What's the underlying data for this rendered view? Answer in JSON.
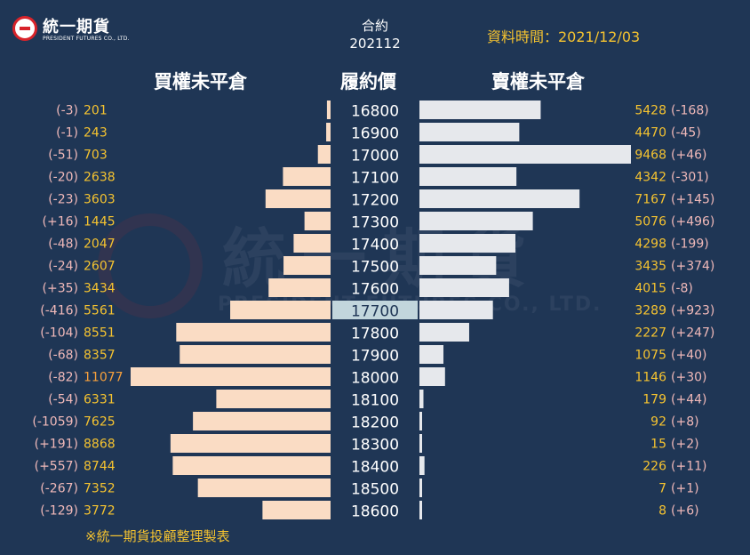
{
  "header": {
    "logo_name": "統一期貨",
    "logo_sub": "PRESIDENT FUTURES CO., LTD.",
    "contract_label": "合約",
    "contract_code": "202112",
    "data_time": "資料時間：2021/12/03"
  },
  "watermark": {
    "main": "統一期貨",
    "sub": "PRESIDENT FUTURES CO., LTD."
  },
  "footer_note": "※統一期貨投顧整理製表",
  "colors": {
    "background": "#1f3655",
    "call_bar": "#fadcc4",
    "put_bar": "#e6e8ec",
    "highlight_strike": "#c2d6dc",
    "value_text": "#f5c330",
    "change_text": "#f0b9b9",
    "orange_value": "#f7a03c"
  },
  "chart_data": {
    "type": "bar",
    "titles": {
      "call": "買權未平倉",
      "strike": "履約價",
      "put": "賣權未平倉"
    },
    "highlight_strike": "17700",
    "strikes": [
      "16800",
      "16900",
      "17000",
      "17100",
      "17200",
      "17300",
      "17400",
      "17500",
      "17600",
      "17700",
      "17800",
      "17900",
      "18000",
      "18100",
      "18200",
      "18300",
      "18400",
      "18500",
      "18600"
    ],
    "call_oi": [
      201,
      243,
      703,
      2638,
      3603,
      1445,
      2047,
      2607,
      3434,
      5561,
      8551,
      8357,
      11077,
      6331,
      7625,
      8868,
      8744,
      7352,
      3772
    ],
    "call_change": [
      "(-3)",
      "(-1)",
      "(-51)",
      "(-20)",
      "(-23)",
      "(+16)",
      "(-48)",
      "(-24)",
      "(+35)",
      "(-416)",
      "(-104)",
      "(-68)",
      "(-82)",
      "(-54)",
      "(-1059)",
      "(+191)",
      "(+557)",
      "(-267)",
      "(-129)"
    ],
    "put_oi": [
      5428,
      4470,
      9468,
      4342,
      7167,
      5076,
      4298,
      3435,
      4015,
      3289,
      2227,
      1075,
      1146,
      179,
      92,
      15,
      226,
      7,
      8
    ],
    "put_change": [
      "(-168)",
      "(-45)",
      "(+46)",
      "(-301)",
      "(+145)",
      "(+496)",
      "(-199)",
      "(+374)",
      "(-8)",
      "(+923)",
      "(+247)",
      "(+40)",
      "(+30)",
      "(+44)",
      "(+8)",
      "(+2)",
      "(+11)",
      "(+1)",
      "(+6)"
    ]
  }
}
